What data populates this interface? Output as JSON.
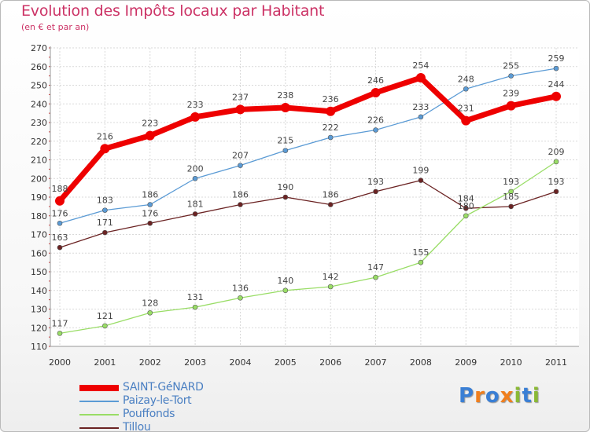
{
  "chart_data": {
    "type": "line",
    "title": "Evolution des Impôts locaux par Habitant",
    "subtitle": "(en € et par an)",
    "x": [
      "2000",
      "2001",
      "2002",
      "2003",
      "2004",
      "2005",
      "2006",
      "2007",
      "2008",
      "2009",
      "2010",
      "2011"
    ],
    "ylim": [
      110,
      270
    ],
    "yticks": [
      110,
      120,
      130,
      140,
      150,
      160,
      170,
      180,
      190,
      200,
      210,
      220,
      230,
      240,
      250,
      260,
      270
    ],
    "grid": true,
    "legend_position": "bottom-left",
    "series": [
      {
        "name": "SAINT-GéNARD",
        "color": "#ee0000",
        "values": [
          188,
          216,
          223,
          233,
          237,
          238,
          236,
          246,
          254,
          231,
          239,
          244
        ]
      },
      {
        "name": "Paizay-le-Tort",
        "color": "#5b9bd5",
        "values": [
          176,
          183,
          186,
          200,
          207,
          215,
          222,
          226,
          233,
          248,
          255,
          259
        ]
      },
      {
        "name": "Pouffonds",
        "color": "#99dd66",
        "values": [
          117,
          121,
          128,
          131,
          136,
          140,
          142,
          147,
          155,
          180,
          193,
          209
        ]
      },
      {
        "name": "Tillou",
        "color": "#6b2323",
        "values": [
          163,
          171,
          176,
          181,
          186,
          190,
          186,
          193,
          199,
          184,
          185,
          193
        ]
      }
    ]
  },
  "logo": {
    "letters": [
      "P",
      "r",
      "o",
      "x",
      "i",
      "t",
      "i"
    ],
    "colors": [
      "#3a7fd5",
      "#f07f1e",
      "#3a7fd5",
      "#f07f1e",
      "#8ab934",
      "#3a7fd5",
      "#8ab934"
    ]
  }
}
